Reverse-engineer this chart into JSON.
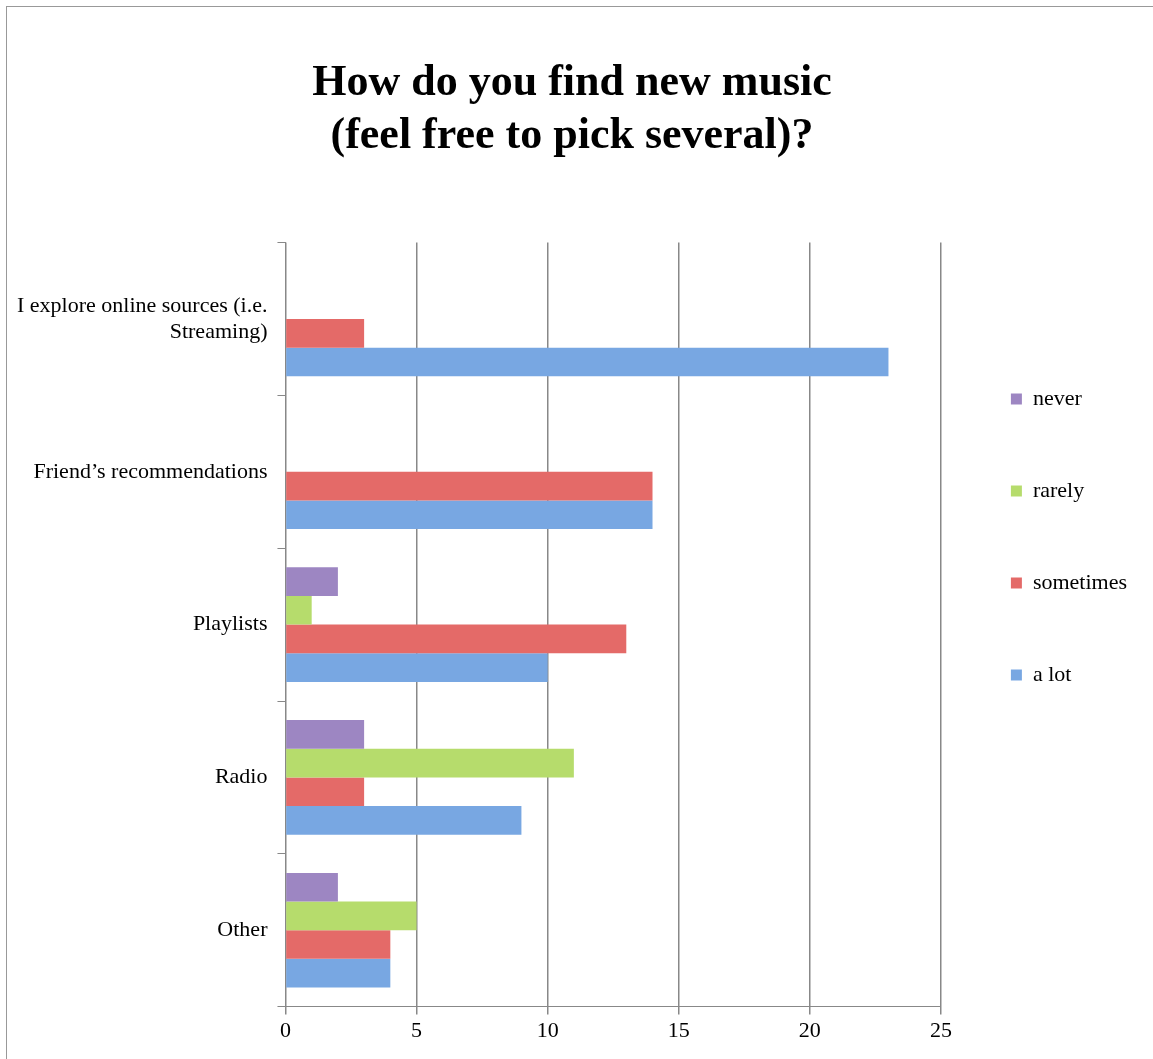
{
  "chart_data": {
    "type": "bar",
    "orientation": "horizontal",
    "title": "How do you find new music (feel free to pick several)?",
    "categories": [
      "I explore online sources (i.e. Streaming)",
      "Friend’s recommendations",
      "Playlists",
      "Radio",
      "Other"
    ],
    "series": [
      {
        "name": "never",
        "color": "#9d86c2",
        "values": [
          0,
          0,
          2,
          3,
          2
        ]
      },
      {
        "name": "rarely",
        "color": "#b6dc6c",
        "values": [
          0,
          0,
          1,
          11,
          5
        ]
      },
      {
        "name": "sometimes",
        "color": "#e46a68",
        "values": [
          3,
          14,
          13,
          3,
          4
        ]
      },
      {
        "name": "a lot",
        "color": "#78a7e2",
        "values": [
          23,
          14,
          10,
          9,
          4
        ]
      }
    ],
    "xlim": [
      0,
      25
    ],
    "xticks": [
      0,
      5,
      10,
      15,
      20,
      25
    ],
    "grid": "x",
    "legend": "right"
  }
}
